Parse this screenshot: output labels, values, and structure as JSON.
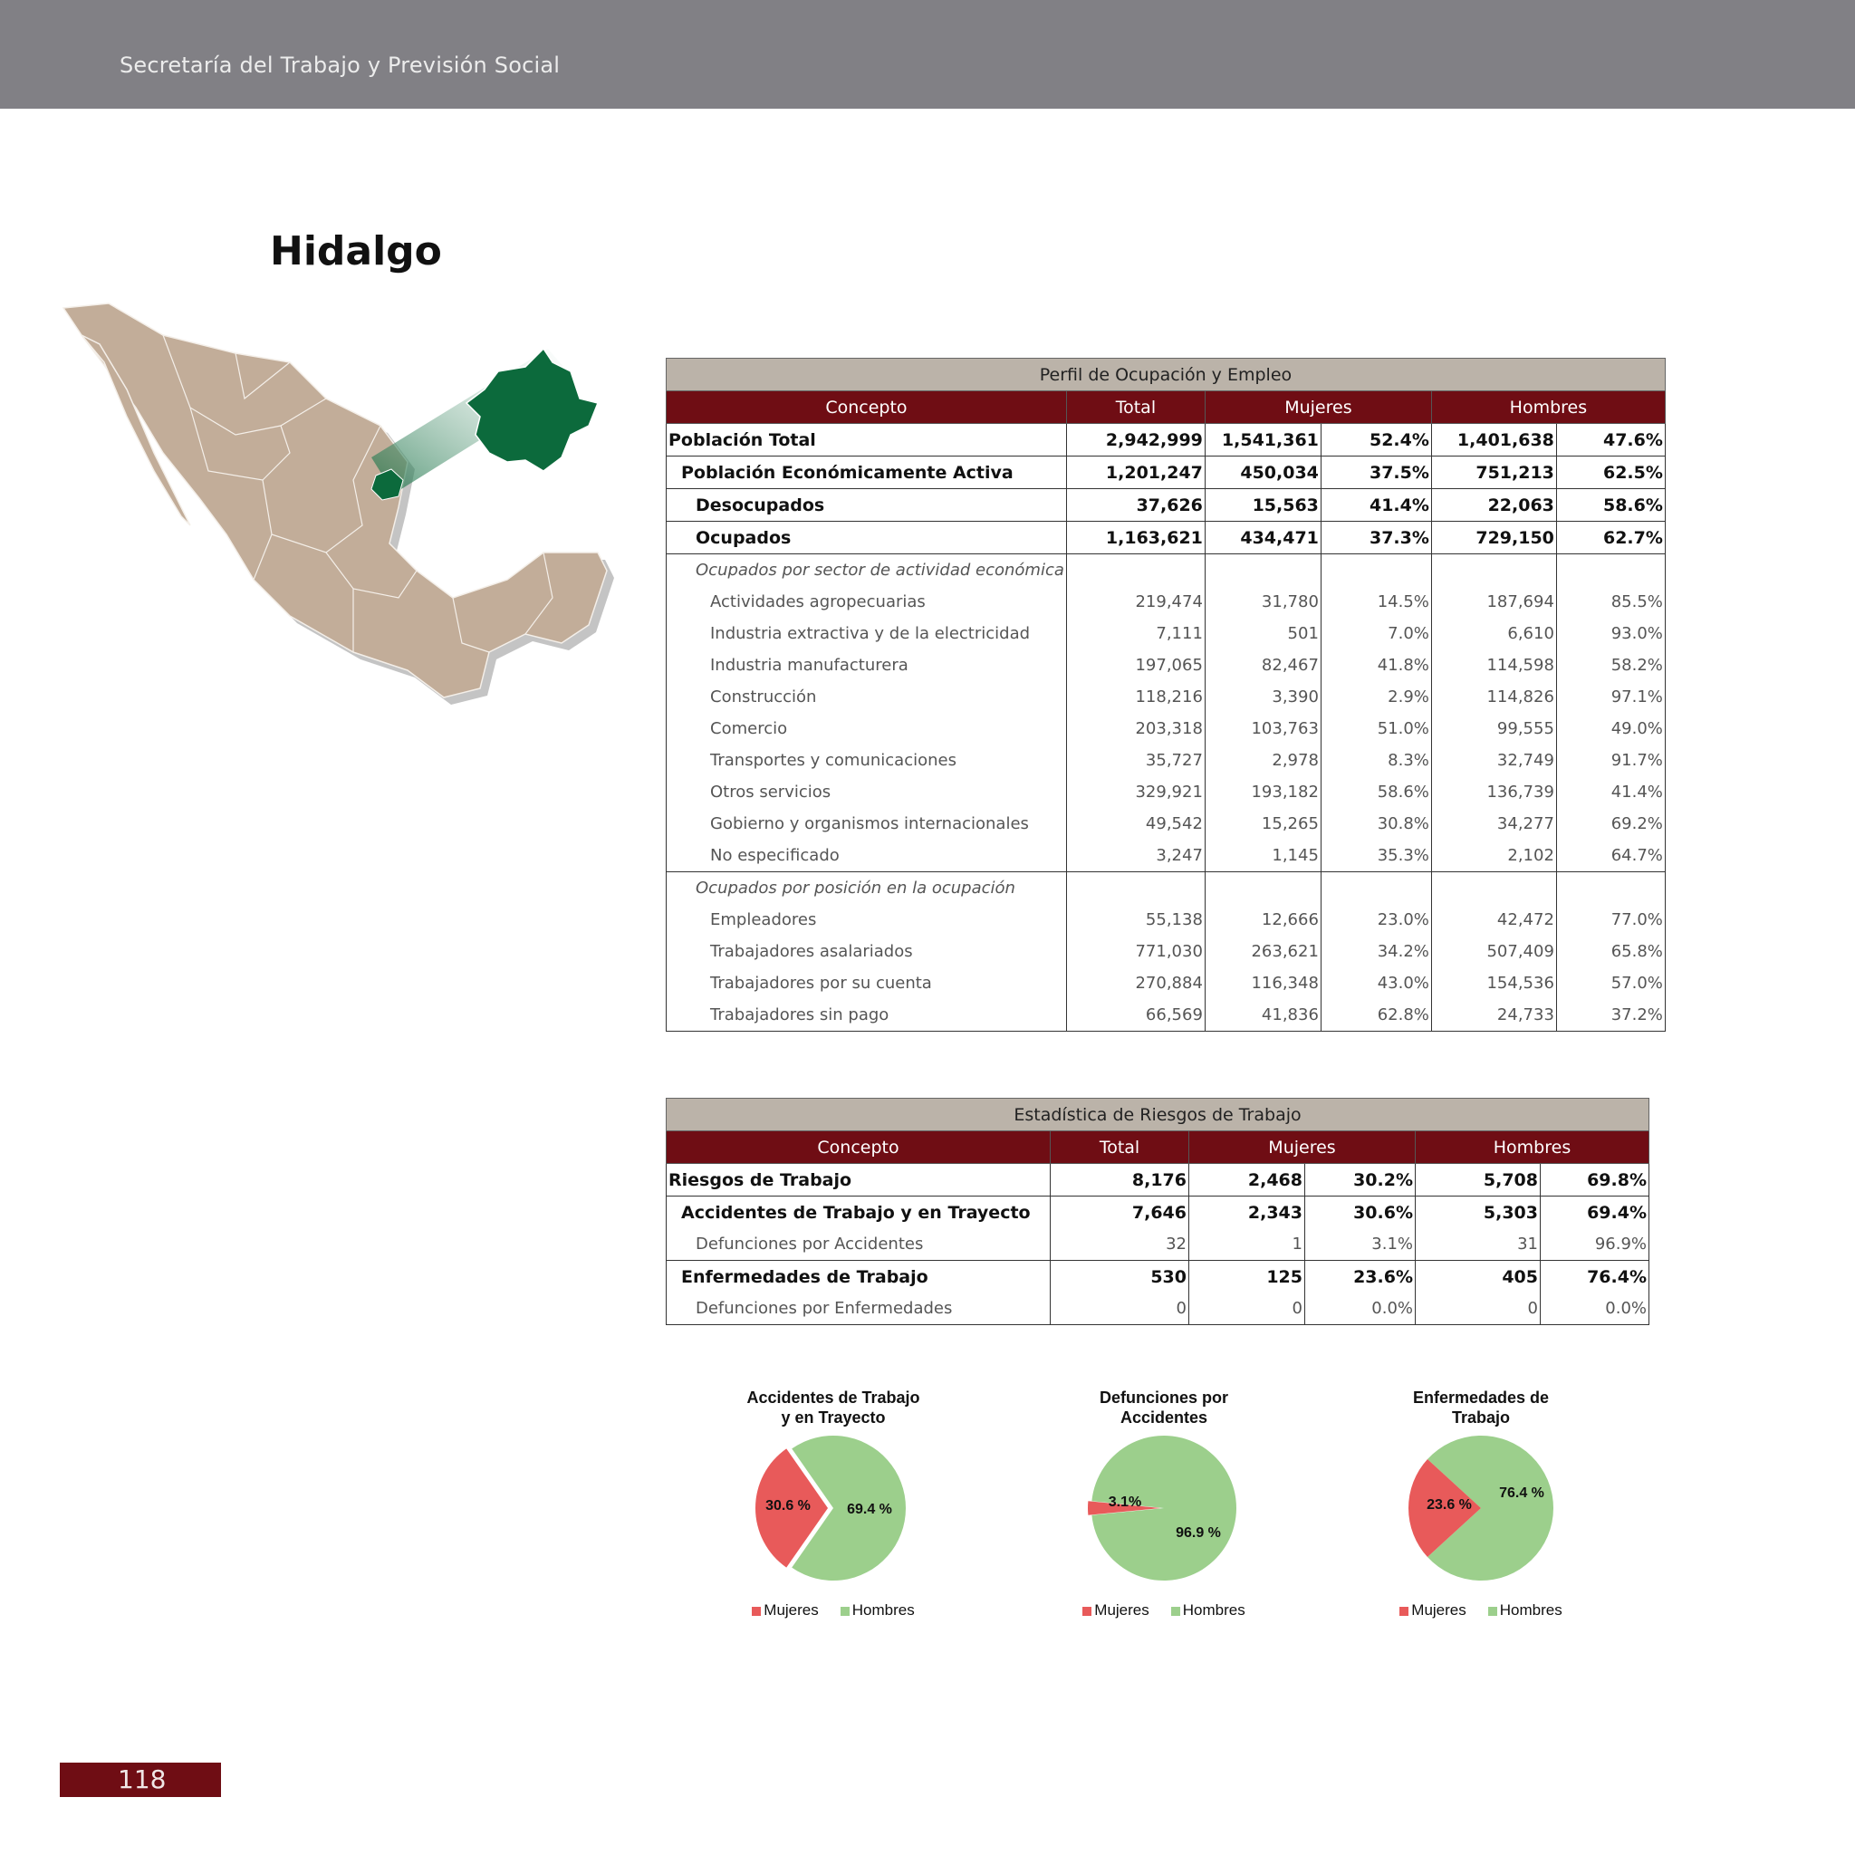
{
  "header": {
    "org": "Secretaría del Trabajo y Previsión Social"
  },
  "page": {
    "state": "Hidalgo",
    "page_number": "118"
  },
  "colors": {
    "accent": "#6f0d14",
    "caption_bg": "#bbb3a9",
    "topbar": "#818085",
    "map_country": "#c2ad99",
    "map_state": "#0c6a3c",
    "mujeres": "#e85a5a",
    "hombres": "#9ccf8c"
  },
  "table1": {
    "caption": "Perfil de Ocupación y Empleo",
    "headers": {
      "concepto": "Concepto",
      "total": "Total",
      "mujeres": "Mujeres",
      "hombres": "Hombres"
    },
    "rows": [
      {
        "label": "Población Total",
        "total": "2,942,999",
        "muj": "1,541,361",
        "muj_pct": "52.4%",
        "hom": "1,401,638",
        "hom_pct": "47.6%"
      },
      {
        "label": "Población Económicamente Activa",
        "total": "1,201,247",
        "muj": "450,034",
        "muj_pct": "37.5%",
        "hom": "751,213",
        "hom_pct": "62.5%"
      },
      {
        "label": "Desocupados",
        "total": "37,626",
        "muj": "15,563",
        "muj_pct": "41.4%",
        "hom": "22,063",
        "hom_pct": "58.6%"
      },
      {
        "label": "Ocupados",
        "total": "1,163,621",
        "muj": "434,471",
        "muj_pct": "37.3%",
        "hom": "729,150",
        "hom_pct": "62.7%"
      },
      {
        "label": "Ocupados por sector de actividad económica"
      },
      {
        "label": "Actividades agropecuarias",
        "total": "219,474",
        "muj": "31,780",
        "muj_pct": "14.5%",
        "hom": "187,694",
        "hom_pct": "85.5%"
      },
      {
        "label": "Industria extractiva y de la electricidad",
        "total": "7,111",
        "muj": "501",
        "muj_pct": "7.0%",
        "hom": "6,610",
        "hom_pct": "93.0%"
      },
      {
        "label": "Industria manufacturera",
        "total": "197,065",
        "muj": "82,467",
        "muj_pct": "41.8%",
        "hom": "114,598",
        "hom_pct": "58.2%"
      },
      {
        "label": "Construcción",
        "total": "118,216",
        "muj": "3,390",
        "muj_pct": "2.9%",
        "hom": "114,826",
        "hom_pct": "97.1%"
      },
      {
        "label": "Comercio",
        "total": "203,318",
        "muj": "103,763",
        "muj_pct": "51.0%",
        "hom": "99,555",
        "hom_pct": "49.0%"
      },
      {
        "label": "Transportes y comunicaciones",
        "total": "35,727",
        "muj": "2,978",
        "muj_pct": "8.3%",
        "hom": "32,749",
        "hom_pct": "91.7%"
      },
      {
        "label": "Otros servicios",
        "total": "329,921",
        "muj": "193,182",
        "muj_pct": "58.6%",
        "hom": "136,739",
        "hom_pct": "41.4%"
      },
      {
        "label": "Gobierno y organismos internacionales",
        "total": "49,542",
        "muj": "15,265",
        "muj_pct": "30.8%",
        "hom": "34,277",
        "hom_pct": "69.2%"
      },
      {
        "label": "No especificado",
        "total": "3,247",
        "muj": "1,145",
        "muj_pct": "35.3%",
        "hom": "2,102",
        "hom_pct": "64.7%"
      },
      {
        "label": "Ocupados por posición en la ocupación"
      },
      {
        "label": "Empleadores",
        "total": "55,138",
        "muj": "12,666",
        "muj_pct": "23.0%",
        "hom": "42,472",
        "hom_pct": "77.0%"
      },
      {
        "label": "Trabajadores asalariados",
        "total": "771,030",
        "muj": "263,621",
        "muj_pct": "34.2%",
        "hom": "507,409",
        "hom_pct": "65.8%"
      },
      {
        "label": "Trabajadores por su cuenta",
        "total": "270,884",
        "muj": "116,348",
        "muj_pct": "43.0%",
        "hom": "154,536",
        "hom_pct": "57.0%"
      },
      {
        "label": "Trabajadores sin pago",
        "total": "66,569",
        "muj": "41,836",
        "muj_pct": "62.8%",
        "hom": "24,733",
        "hom_pct": "37.2%"
      }
    ]
  },
  "table2": {
    "caption": "Estadística de Riesgos de Trabajo",
    "headers": {
      "concepto": "Concepto",
      "total": "Total",
      "mujeres": "Mujeres",
      "hombres": "Hombres"
    },
    "rows": [
      {
        "label": "Riesgos de Trabajo",
        "total": "8,176",
        "muj": "2,468",
        "muj_pct": "30.2%",
        "hom": "5,708",
        "hom_pct": "69.8%"
      },
      {
        "label": "Accidentes de Trabajo y en Trayecto",
        "total": "7,646",
        "muj": "2,343",
        "muj_pct": "30.6%",
        "hom": "5,303",
        "hom_pct": "69.4%"
      },
      {
        "label": "Defunciones por Accidentes",
        "total": "32",
        "muj": "1",
        "muj_pct": "3.1%",
        "hom": "31",
        "hom_pct": "96.9%"
      },
      {
        "label": "Enfermedades de Trabajo",
        "total": "530",
        "muj": "125",
        "muj_pct": "23.6%",
        "hom": "405",
        "hom_pct": "76.4%"
      },
      {
        "label": "Defunciones por Enfermedades",
        "total": "0",
        "muj": "0",
        "muj_pct": "0.0%",
        "hom": "0",
        "hom_pct": "0.0%"
      }
    ]
  },
  "chart_data": [
    {
      "type": "pie",
      "title": "Accidentes de Trabajo y en Trayecto",
      "title_lines": [
        "Accidentes de Trabajo",
        "y en Trayecto"
      ],
      "categories": [
        "Mujeres",
        "Hombres"
      ],
      "values": [
        30.6,
        69.4
      ],
      "labels": [
        "30.6 %",
        "69.4 %"
      ],
      "legend": "bottom"
    },
    {
      "type": "pie",
      "title": "Defunciones por Accidentes",
      "title_lines": [
        "Defunciones por",
        "Accidentes"
      ],
      "categories": [
        "Mujeres",
        "Hombres"
      ],
      "values": [
        3.1,
        96.9
      ],
      "labels": [
        "3.1%",
        "96.9 %"
      ],
      "legend": "bottom"
    },
    {
      "type": "pie",
      "title": "Enfermedades de Trabajo",
      "title_lines": [
        "Enfermedades de",
        "Trabajo"
      ],
      "categories": [
        "Mujeres",
        "Hombres"
      ],
      "values": [
        23.6,
        76.4
      ],
      "labels": [
        "23.6 %",
        "76.4 %"
      ],
      "legend": "bottom"
    }
  ]
}
